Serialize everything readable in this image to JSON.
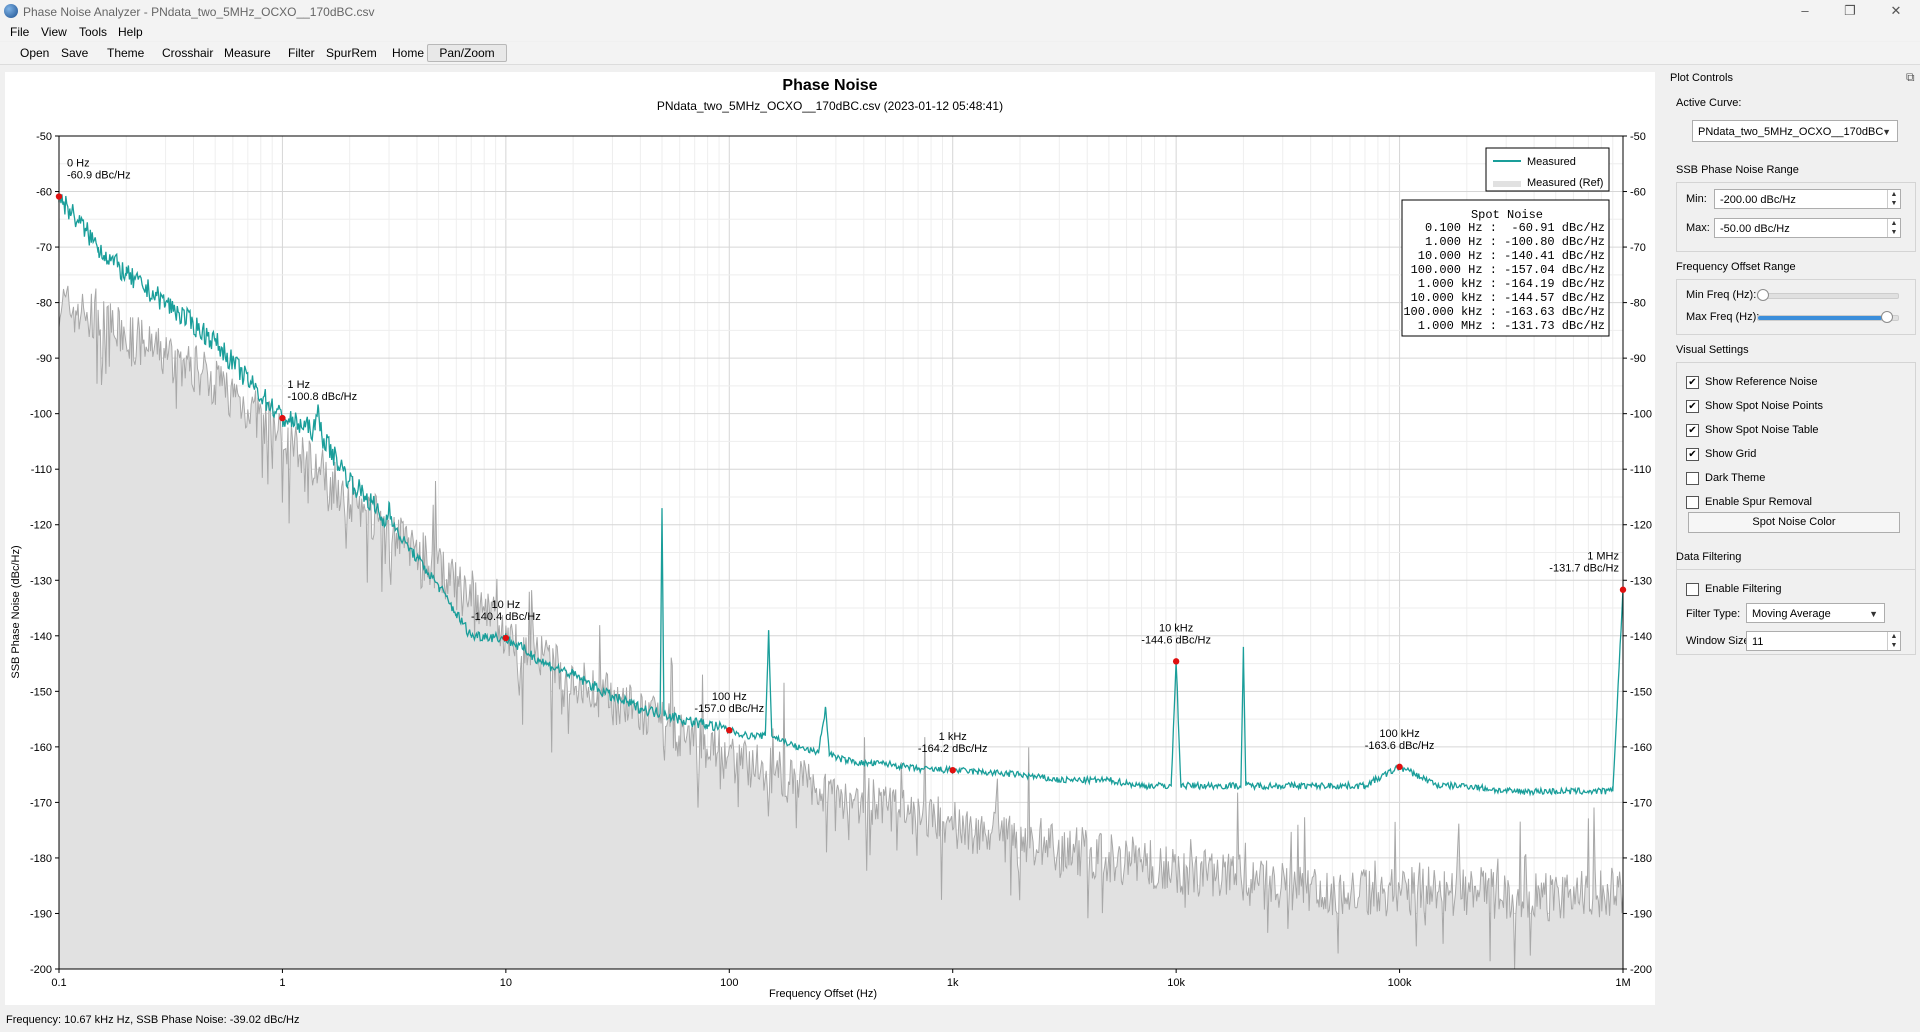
{
  "window": {
    "title": "Phase Noise Analyzer - PNdata_two_5MHz_OCXO__170dBC.csv",
    "minimize": "–",
    "maximize": "❐",
    "close": "✕"
  },
  "menu": [
    "File",
    "View",
    "Tools",
    "Help"
  ],
  "toolbar": [
    "Open",
    "Save",
    "Theme",
    "Crosshair",
    "Measure",
    "Filter",
    "SpurRem",
    "Home",
    "Pan/Zoom"
  ],
  "status": "Frequency: 10.67 kHz Hz, SSB Phase Noise: -39.02 dBc/Hz",
  "colors": {
    "measured": "#1a9e9a",
    "reference": "#a8a8a8",
    "reference_fill": "#e1e1e1",
    "marker": "#e01010",
    "grid": "#e3e3e3"
  },
  "chart_data": {
    "type": "line",
    "title": "Phase Noise",
    "subtitle": "PNdata_two_5MHz_OCXO__170dBC.csv (2023-01-12 05:48:41)",
    "xlabel": "Frequency Offset (Hz)",
    "ylabel": "SSB Phase Noise (dBc/Hz)",
    "xscale": "log",
    "xlim": [
      0.1,
      1000000
    ],
    "ylim": [
      -200,
      -50
    ],
    "x_ticks": [
      "0.1",
      "1",
      "10",
      "100",
      "1k",
      "10k",
      "100k",
      "1M"
    ],
    "y_ticks": [
      "-50",
      "-60",
      "-70",
      "-80",
      "-90",
      "-100",
      "-110",
      "-120",
      "-130",
      "-140",
      "-150",
      "-160",
      "-170",
      "-180",
      "-190",
      "-200"
    ],
    "grid": true,
    "legend_position": "top-right",
    "legend": [
      "Measured",
      "Measured (Ref)"
    ],
    "series": [
      {
        "name": "Measured",
        "x": [
          0.1,
          0.15,
          0.2,
          0.3,
          0.5,
          0.7,
          1,
          1.2,
          1.4,
          1.45,
          1.5,
          2,
          2.5,
          2.9,
          3,
          3.2,
          4,
          5,
          6,
          7,
          8,
          10,
          15,
          20,
          30,
          40,
          49,
          50,
          51,
          60,
          80,
          100,
          120,
          145,
          150,
          155,
          200,
          250,
          270,
          280,
          300,
          400,
          500,
          700,
          1000,
          2000,
          3000,
          5000,
          7000,
          9500,
          10000,
          10500,
          15000,
          19500,
          20000,
          20500,
          30000,
          50000,
          70000,
          100000,
          150000,
          200000,
          300000,
          500000,
          700000,
          900000,
          1000000
        ],
        "y": [
          -60.9,
          -70,
          -75,
          -80,
          -87,
          -94,
          -100.8,
          -102,
          -103,
          -99,
          -104,
          -112,
          -116,
          -120,
          -116,
          -121,
          -126,
          -131,
          -136,
          -140,
          -140,
          -140.4,
          -145,
          -147,
          -151,
          -153,
          -154,
          -117,
          -154,
          -155,
          -156,
          -157,
          -158,
          -158,
          -139,
          -158,
          -160,
          -161,
          -153,
          -161,
          -162,
          -163,
          -163,
          -164,
          -164.2,
          -165,
          -166,
          -166,
          -167,
          -167,
          -144.6,
          -167,
          -167,
          -167,
          -142,
          -167,
          -167,
          -167,
          -167,
          -163.6,
          -167,
          -167,
          -168,
          -168,
          -168,
          -168,
          -131.7
        ]
      },
      {
        "name": "Measured (Ref)",
        "x": [
          0.1,
          0.2,
          0.5,
          1,
          2,
          5,
          10,
          20,
          50,
          100,
          200,
          500,
          1000,
          2000,
          5000,
          10000,
          20000,
          50000,
          100000,
          200000,
          500000,
          1000000
        ],
        "y": [
          -80,
          -86,
          -94,
          -104,
          -115,
          -128,
          -140,
          -148,
          -156,
          -162,
          -166,
          -171,
          -174,
          -177,
          -180,
          -182,
          -184,
          -186,
          -186,
          -186,
          -187,
          -186
        ]
      }
    ],
    "annotations": [
      {
        "x": 0.1,
        "y": -60.9,
        "label1": "0 Hz",
        "label2": "-60.9 dBc/Hz"
      },
      {
        "x": 1,
        "y": -100.8,
        "label1": "1 Hz",
        "label2": "-100.8 dBc/Hz"
      },
      {
        "x": 10,
        "y": -140.4,
        "label1": "10 Hz",
        "label2": "-140.4 dBc/Hz"
      },
      {
        "x": 100,
        "y": -157.0,
        "label1": "100 Hz",
        "label2": "-157.0 dBc/Hz"
      },
      {
        "x": 1000,
        "y": -164.2,
        "label1": "1 kHz",
        "label2": "-164.2 dBc/Hz"
      },
      {
        "x": 10000,
        "y": -144.6,
        "label1": "10 kHz",
        "label2": "-144.6 dBc/Hz"
      },
      {
        "x": 100000,
        "y": -163.6,
        "label1": "100 kHz",
        "label2": "-163.6 dBc/Hz"
      },
      {
        "x": 1000000,
        "y": -131.7,
        "label1": "1 MHz",
        "label2": "-131.7 dBc/Hz"
      }
    ],
    "spot_noise": {
      "title": "Spot Noise",
      "rows": [
        "0.100 Hz :  -60.91 dBc/Hz",
        "1.000 Hz : -100.80 dBc/Hz",
        "10.000 Hz : -140.41 dBc/Hz",
        "100.000 Hz : -157.04 dBc/Hz",
        "1.000 kHz : -164.19 dBc/Hz",
        "10.000 kHz : -144.57 dBc/Hz",
        "100.000 kHz : -163.63 dBc/Hz",
        "1.000 MHz : -131.73 dBc/Hz"
      ]
    }
  },
  "side": {
    "title": "Plot Controls",
    "float_icon": "⧉",
    "active_curve_label": "Active Curve:",
    "active_curve_value": "PNdata_two_5MHz_OCXO__170dBC",
    "range_group": "SSB Phase Noise Range",
    "min_label": "Min:",
    "min_value": "-200.00 dBc/Hz",
    "max_label": "Max:",
    "max_value": "-50.00 dBc/Hz",
    "freq_group": "Frequency Offset Range",
    "min_freq_label": "Min Freq (Hz):",
    "max_freq_label": "Max Freq (Hz):",
    "min_freq_position": 0.0,
    "max_freq_position": 0.95,
    "visual_group": "Visual Settings",
    "checks": [
      {
        "label": "Show Reference Noise",
        "checked": true
      },
      {
        "label": "Show Spot Noise Points",
        "checked": true
      },
      {
        "label": "Show Spot Noise Table",
        "checked": true
      },
      {
        "label": "Show Grid",
        "checked": true
      },
      {
        "label": "Dark Theme",
        "checked": false
      },
      {
        "label": "Enable Spur Removal",
        "checked": false
      }
    ],
    "spot_color_button": "Spot Noise Color",
    "filter_group": "Data Filtering",
    "enable_filtering_label": "Enable Filtering",
    "enable_filtering_checked": false,
    "filter_type_label": "Filter Type:",
    "filter_type_value": "Moving Average",
    "window_size_label": "Window Size:",
    "window_size_value": "11"
  }
}
